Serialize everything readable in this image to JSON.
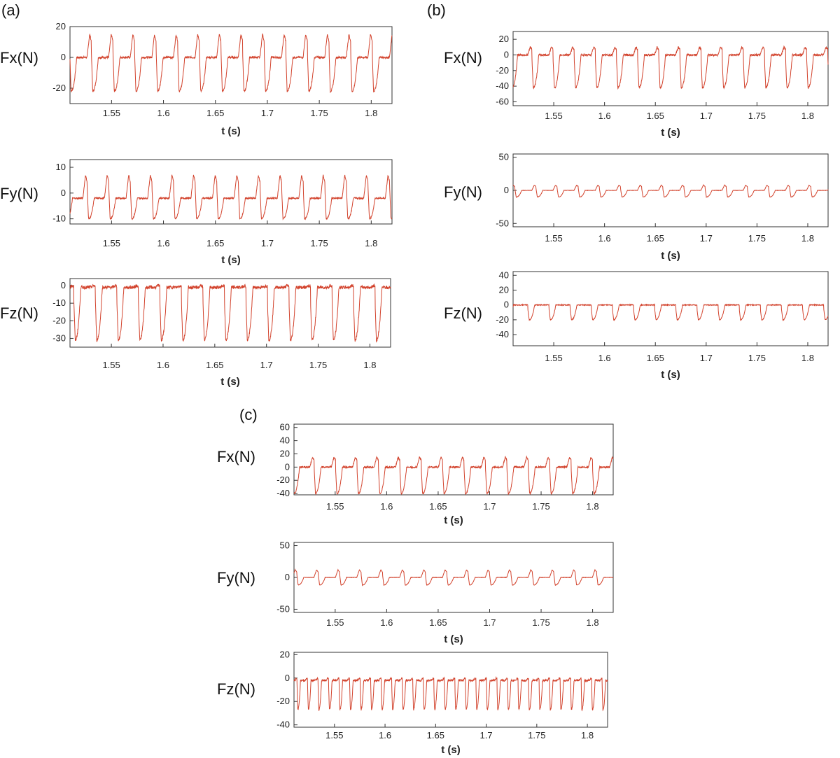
{
  "panels": [
    {
      "id": "a",
      "label": "(a)"
    },
    {
      "id": "b",
      "label": "(b)"
    },
    {
      "id": "c",
      "label": "(c)"
    }
  ],
  "chart_data": [
    {
      "panel": "(a)",
      "type": "line",
      "ylabel": "Fx(N)",
      "xlabel": "t (s)",
      "xlim": [
        1.51,
        1.82
      ],
      "ylim": [
        -30,
        20
      ],
      "yticks": [
        20,
        0,
        -20
      ],
      "xticks": [
        "1.55",
        "1.6",
        "1.65",
        "1.7",
        "1.75",
        "1.8"
      ],
      "color": "#d2422c",
      "grid": false,
      "signal": {
        "period": 0.0208,
        "phase": 0.008,
        "baseline": 0,
        "peak": 15,
        "trough": -22
      }
    },
    {
      "panel": "(a)",
      "type": "line",
      "ylabel": "Fy(N)",
      "xlabel": "t (s)",
      "xlim": [
        1.51,
        1.82
      ],
      "ylim": [
        -12,
        13
      ],
      "yticks": [
        10,
        0,
        -10
      ],
      "xticks": [
        "1.55",
        "1.6",
        "1.65",
        "1.7",
        "1.75",
        "1.8"
      ],
      "color": "#d2422c",
      "grid": false,
      "signal": {
        "period": 0.0208,
        "phase": 0.004,
        "baseline": -2,
        "peak": 7,
        "trough": -10
      }
    },
    {
      "panel": "(a)",
      "type": "line",
      "ylabel": "Fz(N)",
      "xlabel": "t (s)",
      "xlim": [
        1.51,
        1.82
      ],
      "ylim": [
        -35,
        4
      ],
      "yticks": [
        0,
        -10,
        -20,
        -30
      ],
      "xticks": [
        "1.55",
        "1.6",
        "1.65",
        "1.7",
        "1.75",
        "1.8"
      ],
      "color": "#d2422c",
      "grid": false,
      "signal": {
        "period": 0.0208,
        "phase": 0.012,
        "baseline": -1,
        "peak": 0,
        "trough": -31
      }
    },
    {
      "panel": "(b)",
      "type": "line",
      "ylabel": "Fx(N)",
      "xlabel": "t (s)",
      "xlim": [
        1.51,
        1.82
      ],
      "ylim": [
        -65,
        30
      ],
      "yticks": [
        20,
        0,
        -20,
        -40,
        -60
      ],
      "xticks": [
        "1.55",
        "1.6",
        "1.65",
        "1.7",
        "1.75",
        "1.8"
      ],
      "color": "#d2422c",
      "grid": false,
      "signal": {
        "period": 0.0208,
        "phase": 0.006,
        "baseline": 0,
        "peak": 10,
        "trough": -42
      }
    },
    {
      "panel": "(b)",
      "type": "line",
      "ylabel": "Fy(N)",
      "xlabel": "t (s)",
      "xlim": [
        1.51,
        1.82
      ],
      "ylim": [
        -55,
        55
      ],
      "yticks": [
        50,
        0,
        -50
      ],
      "xticks": [
        "1.55",
        "1.6",
        "1.65",
        "1.7",
        "1.75",
        "1.8"
      ],
      "color": "#d2422c",
      "grid": false,
      "signal": {
        "period": 0.0208,
        "phase": 0.01,
        "baseline": 0,
        "peak": 8,
        "trough": -10
      }
    },
    {
      "panel": "(b)",
      "type": "line",
      "ylabel": "Fz(N)",
      "xlabel": "t (s)",
      "xlim": [
        1.51,
        1.82
      ],
      "ylim": [
        -55,
        45
      ],
      "yticks": [
        40,
        20,
        0,
        -20,
        -40
      ],
      "xticks": [
        "1.55",
        "1.6",
        "1.65",
        "1.7",
        "1.75",
        "1.8"
      ],
      "color": "#d2422c",
      "grid": false,
      "signal": {
        "period": 0.0208,
        "phase": 0.002,
        "baseline": 0,
        "peak": 0,
        "trough": -20
      }
    },
    {
      "panel": "(c)",
      "type": "line",
      "ylabel": "Fx(N)",
      "xlabel": "t (s)",
      "xlim": [
        1.51,
        1.82
      ],
      "ylim": [
        -42,
        65
      ],
      "yticks": [
        60,
        40,
        20,
        0,
        -20,
        -40
      ],
      "xticks": [
        "1.55",
        "1.6",
        "1.65",
        "1.7",
        "1.75",
        "1.8"
      ],
      "color": "#d2422c",
      "grid": false,
      "signal": {
        "period": 0.0208,
        "phase": 0.007,
        "baseline": 0,
        "peak": 15,
        "trough": -40
      }
    },
    {
      "panel": "(c)",
      "type": "line",
      "ylabel": "Fy(N)",
      "xlabel": "t (s)",
      "xlim": [
        1.51,
        1.82
      ],
      "ylim": [
        -55,
        55
      ],
      "yticks": [
        50,
        0,
        -50
      ],
      "xticks": [
        "1.55",
        "1.6",
        "1.65",
        "1.7",
        "1.75",
        "1.8"
      ],
      "color": "#d2422c",
      "grid": false,
      "signal": {
        "period": 0.0208,
        "phase": 0.011,
        "baseline": 0,
        "peak": 12,
        "trough": -12
      }
    },
    {
      "panel": "(c)",
      "type": "line",
      "ylabel": "Fz(N)",
      "xlabel": "t (s)",
      "xlim": [
        1.51,
        1.82
      ],
      "ylim": [
        -42,
        22
      ],
      "yticks": [
        20,
        0,
        -20,
        -40
      ],
      "xticks": [
        "1.55",
        "1.6",
        "1.65",
        "1.7",
        "1.75",
        "1.8"
      ],
      "color": "#d2422c",
      "grid": false,
      "signal": {
        "period": 0.0104,
        "phase": 0.003,
        "baseline": -2,
        "peak": 0,
        "trough": -27
      }
    }
  ]
}
